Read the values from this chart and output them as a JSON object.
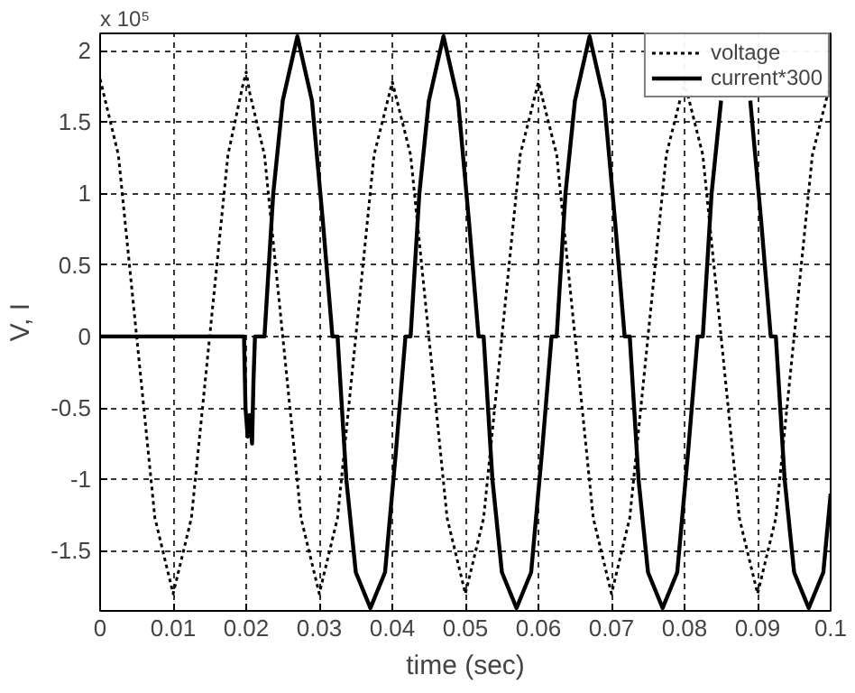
{
  "chart_data": {
    "type": "line",
    "xlabel": "time (sec)",
    "ylabel": "V, I",
    "annotations": [
      "x 10⁵"
    ],
    "xlim": [
      0,
      0.1
    ],
    "ylim": [
      -1.92,
      2.12
    ],
    "xticks": [
      0,
      0.01,
      0.02,
      0.03,
      0.04,
      0.05,
      0.06,
      0.07,
      0.08,
      0.09,
      0.1
    ],
    "yticks": [
      -1.5,
      -1,
      -0.5,
      0,
      0.5,
      1,
      1.5,
      2
    ],
    "grid": true,
    "legend": "top right",
    "series": [
      {
        "name": "voltage",
        "color": "#000000",
        "line_style": "dotted",
        "x": [
          0,
          0.0025,
          0.005,
          0.0075,
          0.01,
          0.0125,
          0.015,
          0.0175,
          0.0195,
          0.02,
          0.0205,
          0.0225,
          0.025,
          0.0275,
          0.03,
          0.0325,
          0.035,
          0.0375,
          0.04,
          0.0425,
          0.045,
          0.0475,
          0.05,
          0.0525,
          0.055,
          0.0575,
          0.06,
          0.0625,
          0.065,
          0.0675,
          0.07,
          0.0725,
          0.075,
          0.0775,
          0.08,
          0.0825,
          0.085,
          0.0875,
          0.09,
          0.0925,
          0.095,
          0.0975,
          0.1
        ],
        "values": [
          1.8,
          1.27,
          0,
          -1.27,
          -1.8,
          -1.27,
          0,
          1.27,
          1.75,
          1.85,
          1.7,
          1.27,
          0,
          -1.27,
          -1.8,
          -1.27,
          0,
          1.27,
          1.78,
          1.27,
          0,
          -1.27,
          -1.8,
          -1.27,
          0,
          1.27,
          1.78,
          1.27,
          0,
          -1.27,
          -1.8,
          -1.27,
          0,
          1.27,
          1.78,
          1.27,
          0,
          -1.27,
          -1.8,
          -1.27,
          0,
          1.27,
          1.78
        ]
      },
      {
        "name": "current*300",
        "color": "#000000",
        "line_style": "solid",
        "x": [
          0,
          0.0197,
          0.0199,
          0.0202,
          0.0205,
          0.0208,
          0.021,
          0.0212,
          0.0225,
          0.0237,
          0.025,
          0.027,
          0.029,
          0.0305,
          0.0318,
          0.0325,
          0.0337,
          0.035,
          0.037,
          0.039,
          0.0405,
          0.0418,
          0.0425,
          0.0437,
          0.045,
          0.047,
          0.049,
          0.0505,
          0.0518,
          0.0525,
          0.0537,
          0.055,
          0.057,
          0.059,
          0.0605,
          0.0618,
          0.0625,
          0.0637,
          0.065,
          0.067,
          0.069,
          0.0705,
          0.0718,
          0.0725,
          0.0737,
          0.075,
          0.077,
          0.079,
          0.0805,
          0.0818,
          0.0825,
          0.0837,
          0.085,
          0.087,
          0.089,
          0.0905,
          0.0918,
          0.0925,
          0.0937,
          0.095,
          0.097,
          0.099,
          0.1
        ],
        "values": [
          0,
          0,
          -0.5,
          -0.7,
          -0.55,
          -0.75,
          -0.3,
          0,
          0,
          1.0,
          1.65,
          2.1,
          1.65,
          0.8,
          0,
          0,
          -1.0,
          -1.65,
          -1.9,
          -1.65,
          -0.8,
          0,
          0,
          1.0,
          1.65,
          2.1,
          1.65,
          0.8,
          0,
          0,
          -1.0,
          -1.65,
          -1.9,
          -1.65,
          -0.8,
          0,
          0,
          1.0,
          1.65,
          2.1,
          1.65,
          0.8,
          0,
          0,
          -1.0,
          -1.65,
          -1.9,
          -1.65,
          -0.8,
          0,
          0,
          1.0,
          1.65,
          null,
          1.65,
          0.8,
          0,
          0,
          -1.0,
          -1.65,
          -1.9,
          -1.65,
          -1.1
        ]
      }
    ]
  }
}
